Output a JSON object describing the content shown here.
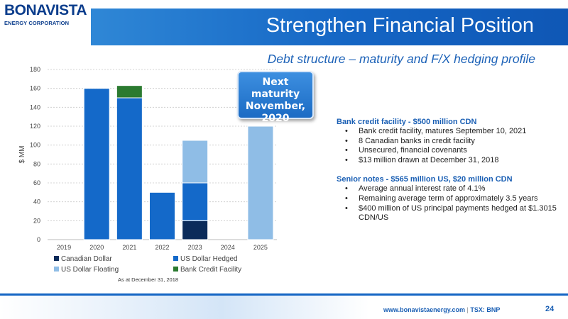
{
  "logo": {
    "name": "BONAVISTA",
    "sub": "ENERGY CORPORATION"
  },
  "title": "Strengthen Financial Position",
  "subtitle": "Debt structure – maturity and F/X hedging profile",
  "badge": "Next maturity\nNovember,\n2020",
  "colors": {
    "title_bar": "#1465c4",
    "accent": "#1a5fb4",
    "canadian_dollar": "#0b2b5a",
    "us_dollar_hedged": "#1469c9",
    "us_dollar_floating": "#8fbde6",
    "bank_credit_facility": "#2b7a30"
  },
  "chart_data": {
    "type": "bar",
    "stacked": true,
    "categories": [
      "2019",
      "2020",
      "2021",
      "2022",
      "2023",
      "2024",
      "2025"
    ],
    "series": [
      {
        "name": "Canadian Dollar",
        "values": [
          0,
          0,
          0,
          0,
          20,
          0,
          0
        ],
        "color": "#0b2b5a"
      },
      {
        "name": "US Dollar Hedged",
        "values": [
          0,
          160,
          150,
          50,
          40,
          0,
          0
        ],
        "color": "#1469c9"
      },
      {
        "name": "US Dollar Floating",
        "values": [
          0,
          0,
          0,
          0,
          45,
          0,
          120
        ],
        "color": "#8fbde6"
      },
      {
        "name": "Bank Credit Facility",
        "values": [
          0,
          0,
          13,
          0,
          0,
          0,
          0
        ],
        "color": "#2b7a30"
      }
    ],
    "ylabel": "$ MM",
    "ylim": [
      0,
      180
    ],
    "yticks": [
      0,
      20,
      40,
      60,
      80,
      100,
      120,
      140,
      160,
      180
    ],
    "grid": true,
    "legend_position": "bottom",
    "note": "As at December 31, 2018"
  },
  "bullets": {
    "bank_heading": "Bank credit facility - $500 million CDN",
    "bank_items": [
      "Bank credit facility, matures September 10, 2021",
      "8 Canadian banks in credit facility",
      "Unsecured, financial covenants",
      "$13 million drawn at December 31, 2018"
    ],
    "notes_heading": "Senior notes - $565 million US, $20 million CDN",
    "notes_items": [
      "Average annual interest rate of 4.1%",
      "Remaining average term of approximately 3.5 years",
      "$400 million of US principal payments hedged at $1.3015 CDN/US"
    ],
    "bullet_char": "•"
  },
  "footer": {
    "url": "www.bonavistaenergy.com",
    "separator": "|",
    "ticker": "TSX: BNP",
    "page": "24"
  }
}
